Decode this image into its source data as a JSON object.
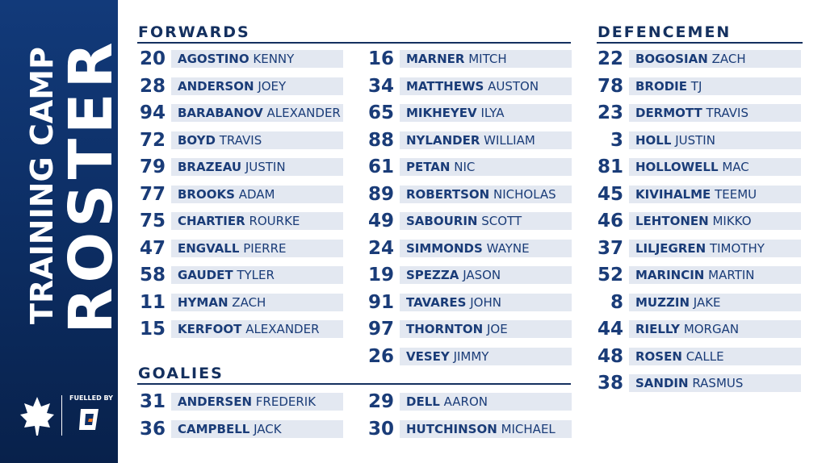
{
  "title": {
    "line1": "TRAINING CAMP",
    "line2": "ROSTER"
  },
  "sponsor": "FUELLED BY",
  "sections": [
    {
      "heading": "FORWARDS",
      "columns": [
        [
          {
            "number": 20,
            "last": "AGOSTINO",
            "first": "KENNY"
          },
          {
            "number": 28,
            "last": "ANDERSON",
            "first": "JOEY"
          },
          {
            "number": 94,
            "last": "BARABANOV",
            "first": "ALEXANDER"
          },
          {
            "number": 72,
            "last": "BOYD",
            "first": "TRAVIS"
          },
          {
            "number": 79,
            "last": "BRAZEAU",
            "first": "JUSTIN"
          },
          {
            "number": 77,
            "last": "BROOKS",
            "first": "ADAM"
          },
          {
            "number": 75,
            "last": "CHARTIER",
            "first": "ROURKE"
          },
          {
            "number": 47,
            "last": "ENGVALL",
            "first": "PIERRE"
          },
          {
            "number": 58,
            "last": "GAUDET",
            "first": "TYLER"
          },
          {
            "number": 11,
            "last": "HYMAN",
            "first": "ZACH"
          },
          {
            "number": 15,
            "last": "KERFOOT",
            "first": "ALEXANDER"
          }
        ],
        [
          {
            "number": 16,
            "last": "MARNER",
            "first": "MITCH"
          },
          {
            "number": 34,
            "last": "MATTHEWS",
            "first": "AUSTON"
          },
          {
            "number": 65,
            "last": "MIKHEYEV",
            "first": "ILYA"
          },
          {
            "number": 88,
            "last": "NYLANDER",
            "first": "WILLIAM"
          },
          {
            "number": 61,
            "last": "PETAN",
            "first": "NIC"
          },
          {
            "number": 89,
            "last": "ROBERTSON",
            "first": "NICHOLAS"
          },
          {
            "number": 49,
            "last": "SABOURIN",
            "first": "SCOTT"
          },
          {
            "number": 24,
            "last": "SIMMONDS",
            "first": "WAYNE"
          },
          {
            "number": 19,
            "last": "SPEZZA",
            "first": "JASON"
          },
          {
            "number": 91,
            "last": "TAVARES",
            "first": "JOHN"
          },
          {
            "number": 97,
            "last": "THORNTON",
            "first": "JOE"
          },
          {
            "number": 26,
            "last": "VESEY",
            "first": "JIMMY"
          }
        ]
      ]
    },
    {
      "heading": "GOALIES",
      "columns": [
        [
          {
            "number": 31,
            "last": "ANDERSEN",
            "first": "FREDERIK"
          },
          {
            "number": 36,
            "last": "CAMPBELL",
            "first": "JACK"
          }
        ],
        [
          {
            "number": 29,
            "last": "DELL",
            "first": "AARON"
          },
          {
            "number": 30,
            "last": "HUTCHINSON",
            "first": "MICHAEL"
          }
        ]
      ]
    },
    {
      "heading": "DEFENCEMEN",
      "columns": [
        [
          {
            "number": 22,
            "last": "BOGOSIAN",
            "first": "ZACH"
          },
          {
            "number": 78,
            "last": "BRODIE",
            "first": "TJ"
          },
          {
            "number": 23,
            "last": "DERMOTT",
            "first": "TRAVIS"
          },
          {
            "number": 3,
            "last": "HOLL",
            "first": "JUSTIN"
          },
          {
            "number": 81,
            "last": "HOLLOWELL",
            "first": "MAC"
          },
          {
            "number": 45,
            "last": "KIVIHALME",
            "first": "TEEMU"
          },
          {
            "number": 46,
            "last": "LEHTONEN",
            "first": "MIKKO"
          },
          {
            "number": 37,
            "last": "LILJEGREN",
            "first": "TIMOTHY"
          },
          {
            "number": 52,
            "last": "MARINCIN",
            "first": "MARTIN"
          },
          {
            "number": 8,
            "last": "MUZZIN",
            "first": "JAKE"
          },
          {
            "number": 44,
            "last": "RIELLY",
            "first": "MORGAN"
          },
          {
            "number": 48,
            "last": "ROSEN",
            "first": "CALLE"
          },
          {
            "number": 38,
            "last": "SANDIN",
            "first": "RASMUS"
          }
        ]
      ]
    }
  ]
}
